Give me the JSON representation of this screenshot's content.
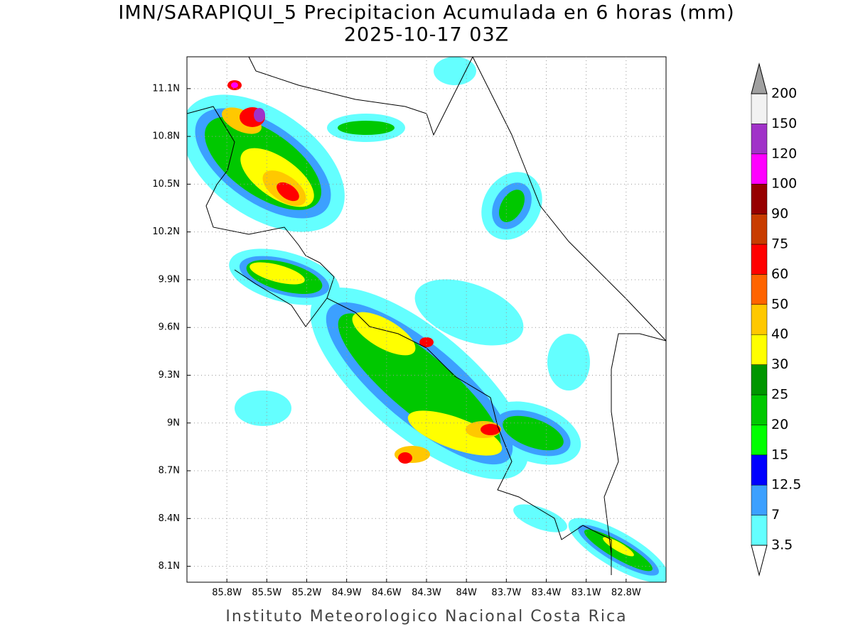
{
  "title": "IMN/SARAPIQUI_5 Precipitacion Acumulada en 6 horas (mm)",
  "subtitle": "2025-10-17 03Z",
  "footer": "Instituto Meteorologico Nacional Costa Rica",
  "map": {
    "lonlim": [
      -86.1,
      -82.5
    ],
    "latlim": [
      8.0,
      11.3
    ],
    "grid": true,
    "lonticks": [
      {
        "value": -85.8,
        "label": "85.8W"
      },
      {
        "value": -85.5,
        "label": "85.5W"
      },
      {
        "value": -85.2,
        "label": "85.2W"
      },
      {
        "value": -84.9,
        "label": "84.9W"
      },
      {
        "value": -84.6,
        "label": "84.6W"
      },
      {
        "value": -84.3,
        "label": "84.3W"
      },
      {
        "value": -84,
        "label": "84W"
      },
      {
        "value": -83.7,
        "label": "83.7W"
      },
      {
        "value": -83.4,
        "label": "83.4W"
      },
      {
        "value": -83.1,
        "label": "83.1W"
      },
      {
        "value": -82.8,
        "label": "82.8W"
      }
    ],
    "latticks": [
      {
        "value": 8.1,
        "label": "8.1N"
      },
      {
        "value": 8.4,
        "label": "8.4N"
      },
      {
        "value": 8.7,
        "label": "8.7N"
      },
      {
        "value": 9,
        "label": "9N"
      },
      {
        "value": 9.3,
        "label": "9.3N"
      },
      {
        "value": 9.6,
        "label": "9.6N"
      },
      {
        "value": 9.9,
        "label": "9.9N"
      },
      {
        "value": 10.2,
        "label": "10.2N"
      },
      {
        "value": 10.5,
        "label": "10.5N"
      },
      {
        "value": 10.8,
        "label": "10.8N"
      },
      {
        "value": 11.1,
        "label": "11.1N"
      }
    ]
  },
  "colorbar": {
    "levels": [
      3.5,
      7,
      12.5,
      15,
      20,
      25,
      30,
      40,
      50,
      60,
      75,
      90,
      100,
      120,
      150,
      200
    ],
    "colors": [
      "#64ffff",
      "#3ca0ff",
      "#0000ff",
      "#00ff00",
      "#00c800",
      "#009600",
      "#ffff00",
      "#ffc800",
      "#ff6400",
      "#ff0000",
      "#c83c00",
      "#960000",
      "#ff00ff",
      "#a032c8",
      "#f2f2f2"
    ],
    "under_color": "#ffffff",
    "over_color": "#a0a0a0"
  }
}
